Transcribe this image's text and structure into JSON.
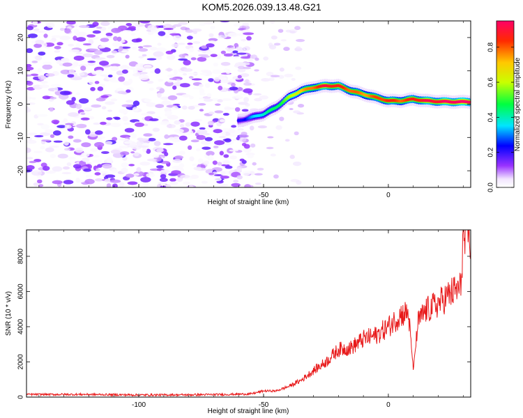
{
  "chart_data": [
    {
      "type": "heatmap",
      "title": "KOM5.2026.039.13.48.G21",
      "xlabel": "Height of straight line (km)",
      "ylabel": "Frequency (Hz)",
      "xlim": [
        -145,
        33
      ],
      "ylim": [
        -25,
        25
      ],
      "xticks": [
        -100,
        -50,
        0
      ],
      "yticks": [
        -20,
        -10,
        0,
        10,
        20
      ],
      "colorbar": {
        "label": "Normalized spectral amplitude",
        "range": [
          0,
          0.95
        ],
        "ticks": [
          0.0,
          0.2,
          0.4,
          0.6,
          0.8
        ]
      },
      "noise_region_x": [
        -145,
        -57
      ],
      "signal_ridge": {
        "x": [
          -60,
          -55,
          -50,
          -45,
          -40,
          -35,
          -30,
          -25,
          -20,
          -15,
          -10,
          -5,
          0,
          5,
          10,
          15,
          20,
          25,
          30,
          33
        ],
        "freq": [
          -5,
          -4,
          -3,
          -1,
          2,
          4,
          5,
          5.5,
          5.5,
          4,
          3,
          2,
          1,
          1,
          1.5,
          1,
          0.8,
          0.7,
          0.7,
          0.7
        ],
        "amplitude": [
          0.2,
          0.3,
          0.4,
          0.45,
          0.55,
          0.7,
          0.8,
          0.9,
          0.85,
          0.8,
          0.75,
          0.8,
          0.85,
          0.8,
          0.85,
          0.9,
          0.9,
          0.95,
          0.95,
          0.95
        ]
      }
    },
    {
      "type": "line",
      "xlabel": "Height of straight line (km)",
      "ylabel": "SNR (10 * v/v)",
      "xlim": [
        -145,
        33
      ],
      "ylim": [
        0,
        9500
      ],
      "xticks": [
        -100,
        -50,
        0
      ],
      "yticks": [
        0,
        2000,
        4000,
        6000,
        8000
      ],
      "series": [
        {
          "name": "SNR",
          "color": "#e8191a",
          "x": [
            -145,
            -120,
            -100,
            -80,
            -65,
            -55,
            -50,
            -45,
            -40,
            -35,
            -30,
            -25,
            -20,
            -15,
            -10,
            -5,
            0,
            3,
            5,
            8,
            10,
            12,
            15,
            20,
            25,
            29,
            30,
            31,
            32,
            33
          ],
          "y": [
            150,
            150,
            120,
            130,
            150,
            180,
            350,
            350,
            600,
            950,
            1500,
            2000,
            2700,
            2800,
            3300,
            3500,
            4000,
            4400,
            4700,
            4800,
            1600,
            4300,
            4900,
            5300,
            5900,
            6200,
            9200,
            8500,
            9400,
            9000
          ]
        }
      ]
    }
  ]
}
